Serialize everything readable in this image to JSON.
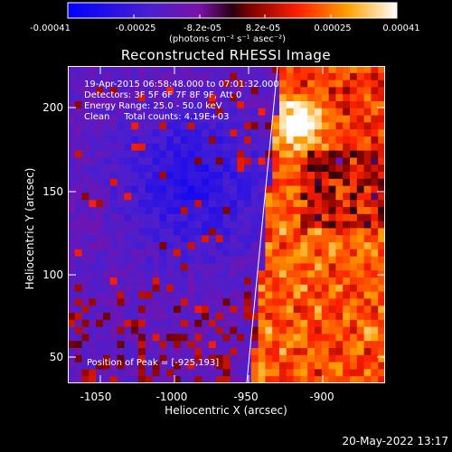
{
  "colorbar": {
    "ticks": [
      {
        "label": "-0.00041",
        "value": -0.00041
      },
      {
        "label": "-0.00025",
        "value": -0.00025
      },
      {
        "label": "-8.2e-05",
        "value": -8.2e-05
      },
      {
        "label": "8.2e-05",
        "value": 8.2e-05
      },
      {
        "label": "0.00025",
        "value": 0.00025
      },
      {
        "label": "0.00041",
        "value": 0.00041
      }
    ],
    "unit": "(photons cm⁻² s⁻¹ asec⁻²)"
  },
  "plot": {
    "title": "Reconstructed RHESSI Image",
    "info_lines": [
      "19-Apr-2015 06:58:48.000 to 07:01:32.000",
      "Detectors: 3F 5F 6F 7F 8F 9F, Att 0",
      "Energy Range: 25.0 - 50.0 keV",
      "Clean     Total counts: 4.19E+03"
    ],
    "peak_text": "Position of Peak = [-925,193]",
    "xlabel": "Heliocentric X (arcsec)",
    "ylabel": "Heliocentric Y (arcsec)",
    "xticks": [
      "-1050",
      "-1000",
      "-950",
      "-900"
    ],
    "yticks": [
      "200",
      "150",
      "100",
      "50"
    ]
  },
  "footer": {
    "timestamp": "20-May-2022 13:17"
  },
  "chart_data": {
    "type": "heatmap",
    "title": "Reconstructed RHESSI Image",
    "xlabel": "Heliocentric X (arcsec)",
    "ylabel": "Heliocentric Y (arcsec)",
    "xlim": [
      -1062,
      -871
    ],
    "ylim": [
      34,
      227
    ],
    "colorbar_range": [
      -0.00041,
      0.00041
    ],
    "peak_position": [
      -925,
      193
    ],
    "limb_line": [
      [
        -963,
        34
      ],
      [
        -929,
        227
      ]
    ]
  }
}
